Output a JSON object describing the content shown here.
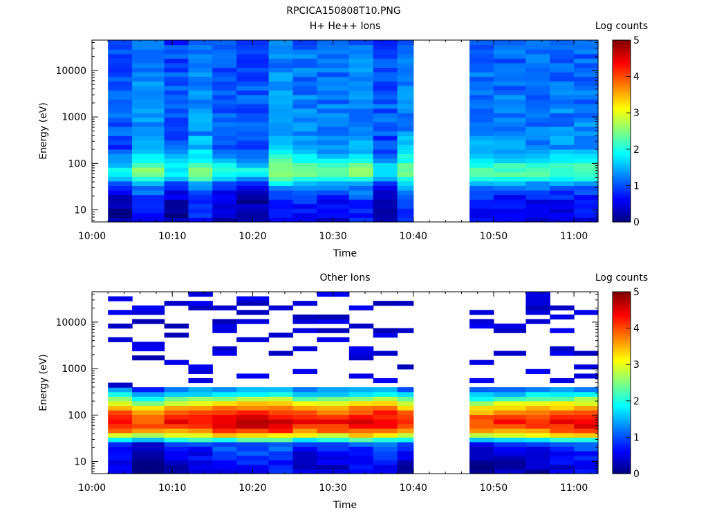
{
  "figure": {
    "title": "RPCICA150808T10.PNG",
    "colorbar_label": "Log counts",
    "colorbar_ticks": [
      "0",
      "1",
      "2",
      "3",
      "4",
      "5"
    ],
    "colormap": "jet",
    "background": "#ffffff"
  },
  "chart_data": [
    {
      "type": "heatmap",
      "title": "H+ He++ Ions",
      "xlabel": "Time",
      "ylabel": "Energy (eV)",
      "x_ticks": [
        "10:00",
        "10:10",
        "10:20",
        "10:30",
        "10:40",
        "10:50",
        "11:00"
      ],
      "xlim": [
        "10:00",
        "11:03"
      ],
      "y_scale": "log",
      "ylim": [
        5.5,
        45000
      ],
      "y_ticks": [
        "10",
        "100",
        "1000",
        "10000"
      ],
      "color_scale": "Log counts",
      "clim": [
        0,
        5
      ],
      "data_gaps": [
        [
          "10:00",
          "10:02"
        ],
        [
          "10:40",
          "10:47"
        ]
      ],
      "time_columns": [
        "10:02",
        "10:05",
        "10:09",
        "10:12",
        "10:15",
        "10:18",
        "10:22",
        "10:25",
        "10:28",
        "10:32",
        "10:35",
        "10:38",
        "10:47",
        "10:50",
        "10:54",
        "10:57",
        "11:00"
      ],
      "energy_profile": [
        {
          "energy": 8,
          "log_counts": 0.45
        },
        {
          "energy": 12,
          "log_counts": 0.55
        },
        {
          "energy": 17,
          "log_counts": 0.6
        },
        {
          "energy": 25,
          "log_counts": 0.85
        },
        {
          "energy": 35,
          "log_counts": 1.2
        },
        {
          "energy": 50,
          "log_counts": 2.0
        },
        {
          "energy": 70,
          "log_counts": 2.2
        },
        {
          "energy": 100,
          "log_counts": 1.9
        },
        {
          "energy": 150,
          "log_counts": 1.6
        },
        {
          "energy": 200,
          "log_counts": 1.3
        },
        {
          "energy": 500,
          "log_counts": 1.2
        },
        {
          "energy": 1000,
          "log_counts": 1.2
        },
        {
          "energy": 5000,
          "log_counts": 1.15
        },
        {
          "energy": 20000,
          "log_counts": 1.1
        },
        {
          "energy": 40000,
          "log_counts": 1.0
        }
      ]
    },
    {
      "type": "heatmap",
      "title": "Other Ions",
      "xlabel": "Time",
      "ylabel": "Energy (eV)",
      "x_ticks": [
        "10:00",
        "10:10",
        "10:20",
        "10:30",
        "10:40",
        "10:50",
        "11:00"
      ],
      "xlim": [
        "10:00",
        "11:03"
      ],
      "y_scale": "log",
      "ylim": [
        5.5,
        45000
      ],
      "y_ticks": [
        "10",
        "100",
        "1000",
        "10000"
      ],
      "color_scale": "Log counts",
      "clim": [
        0,
        5
      ],
      "data_gaps": [
        [
          "10:00",
          "10:02"
        ],
        [
          "10:40",
          "10:47"
        ]
      ],
      "time_columns": [
        "10:02",
        "10:05",
        "10:09",
        "10:12",
        "10:15",
        "10:18",
        "10:22",
        "10:25",
        "10:28",
        "10:32",
        "10:35",
        "10:38",
        "10:47",
        "10:50",
        "10:54",
        "10:57",
        "11:00"
      ],
      "energy_profile": [
        {
          "energy": 8,
          "log_counts": 0.35
        },
        {
          "energy": 12,
          "log_counts": 0.5
        },
        {
          "energy": 17,
          "log_counts": 0.6
        },
        {
          "energy": 25,
          "log_counts": 0.9
        },
        {
          "energy": 35,
          "log_counts": 2.8
        },
        {
          "energy": 50,
          "log_counts": 4.0
        },
        {
          "energy": 70,
          "log_counts": 4.4
        },
        {
          "energy": 100,
          "log_counts": 4.1
        },
        {
          "energy": 150,
          "log_counts": 3.4
        },
        {
          "energy": 200,
          "log_counts": 2.7
        },
        {
          "energy": 300,
          "log_counts": 1.6
        },
        {
          "energy": 500,
          "log_counts": 0.5
        }
      ],
      "sparse_above_eV": 400
    }
  ]
}
